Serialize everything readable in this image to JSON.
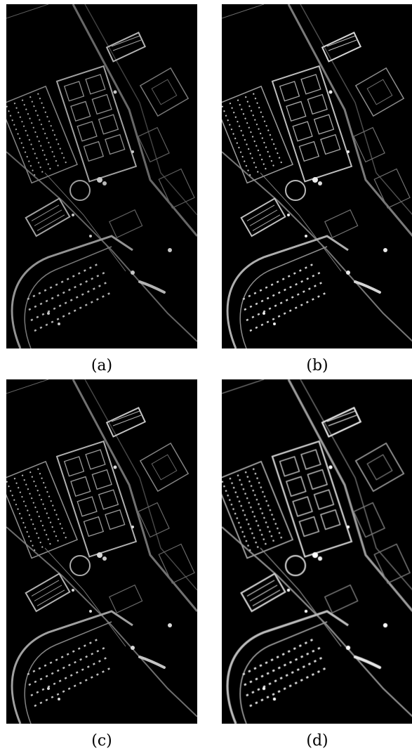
{
  "figure": {
    "panels": [
      {
        "id": "a",
        "caption": "(a)"
      },
      {
        "id": "b",
        "caption": "(b)"
      },
      {
        "id": "c",
        "caption": "(c)"
      },
      {
        "id": "d",
        "caption": "(d)"
      }
    ]
  }
}
